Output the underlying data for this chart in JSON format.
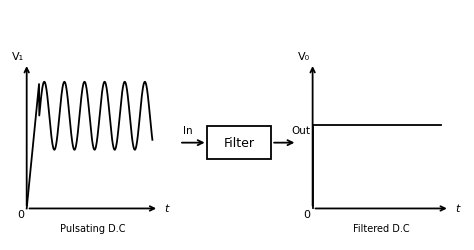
{
  "bg_color": "#ffffff",
  "line_color": "#000000",
  "label_left": "Pulsating D.C",
  "label_right": "Filtered D.C",
  "v1_label": "V₁",
  "v0_label": "V₀",
  "t_label": "t",
  "zero_label": "0",
  "filter_label": "Filter",
  "in_label": "In",
  "out_label": "Out",
  "font_size_axis": 8,
  "font_size_label": 7,
  "font_size_filter": 9
}
